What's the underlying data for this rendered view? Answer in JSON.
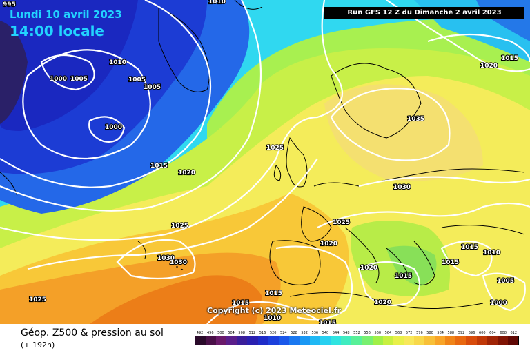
{
  "header": {
    "date_line": "Lundi 10 avril 2023",
    "time_line": "14:00 locale",
    "run_info": "Run GFS 12 Z du Dimanche 2 avril 2023"
  },
  "copyright": "Copyright (c) 2023 Meteociel.fr",
  "footer": {
    "title": "Géop. Z500 & pression au sol",
    "subtitle": "(+ 192h)"
  },
  "scale": {
    "labels": [
      "492",
      "496",
      "500",
      "504",
      "508",
      "512",
      "516",
      "520",
      "524",
      "528",
      "532",
      "536",
      "540",
      "544",
      "548",
      "552",
      "556",
      "560",
      "564",
      "568",
      "572",
      "576",
      "580",
      "584",
      "588",
      "592",
      "596",
      "600",
      "604",
      "608",
      "612"
    ],
    "colors": [
      "#2a0a2a",
      "#4a1048",
      "#6a1a6a",
      "#5a1e8a",
      "#3a1e9a",
      "#2a20b0",
      "#1e2cc8",
      "#1c40dc",
      "#1a58ea",
      "#1a78f0",
      "#1a98f4",
      "#20b8f4",
      "#28d0f0",
      "#30e4e0",
      "#40ecc0",
      "#58f098",
      "#78f070",
      "#a0f048",
      "#c8f040",
      "#e8f04a",
      "#f8e85a",
      "#f8d84a",
      "#f8c038",
      "#f8a428",
      "#f08418",
      "#e86810",
      "#d84c0c",
      "#c03808",
      "#a02406",
      "#801404",
      "#600804"
    ]
  },
  "isobar_labels": [
    "995",
    "1010",
    "1010",
    "1005",
    "1005",
    "1000",
    "1005",
    "1000",
    "1015",
    "1020",
    "1025",
    "1020",
    "1035",
    "1030",
    "1015",
    "1025",
    "1020",
    "1015",
    "1015",
    "1010",
    "1020",
    "1030",
    "1015",
    "1005",
    "1000",
    "1020",
    "1025",
    "1015",
    "1010",
    "1015",
    "1015",
    "1030",
    "1025"
  ],
  "color_semantics": {
    "low_geopotential": "#1a2ad0",
    "high_geopotential": "#f07a10",
    "isobars": "#ffffff",
    "coastlines": "#000000"
  }
}
